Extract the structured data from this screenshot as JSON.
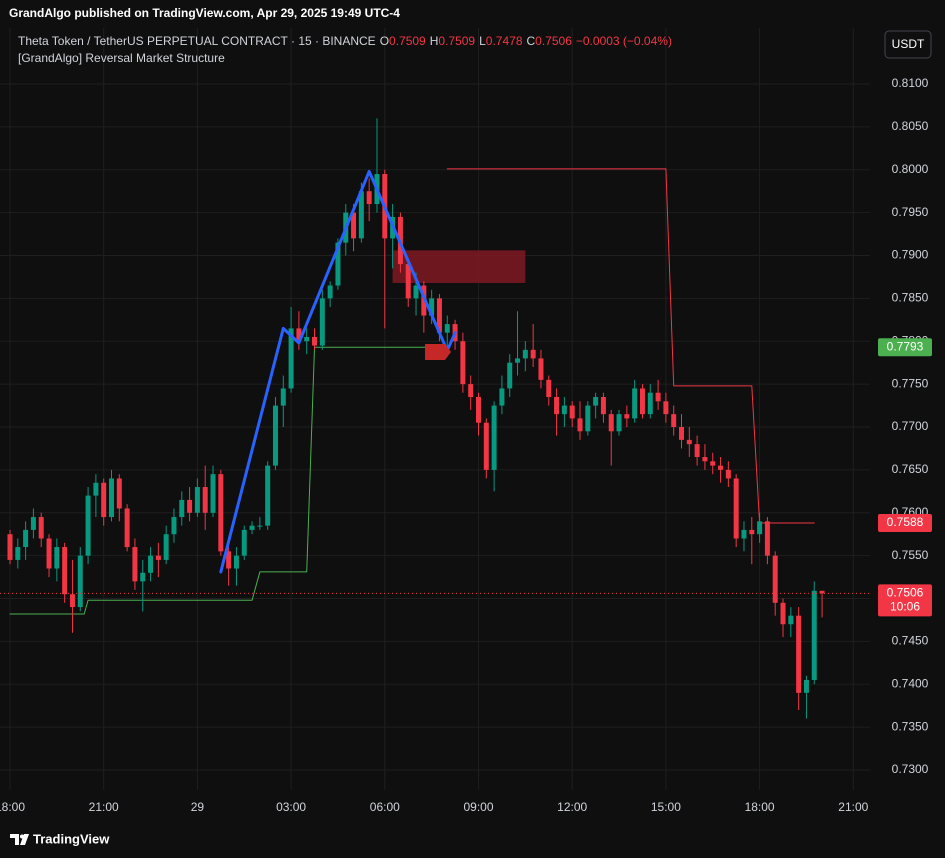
{
  "published": "GrandAlgo published on TradingView.com, Apr 29, 2025 19:49 UTC-4",
  "footer": "TradingView",
  "currency_button": "USDT",
  "chart_data": {
    "type": "candlestick",
    "title": "Theta Token / TetherUS PERPETUAL CONTRACT · 15 · BINANCE",
    "ohlc": [
      {
        "label": "O",
        "value": 0.7509
      },
      {
        "label": "H",
        "value": 0.7509
      },
      {
        "label": "L",
        "value": 0.7478
      },
      {
        "label": "C",
        "value": 0.7506
      }
    ],
    "change": "−0.0003 (−0.04%)",
    "indicator": "[GrandAlgo] Reversal Market Structure",
    "countdown": "10:06",
    "up_color": "#089981",
    "down_color": "#f23645",
    "grid": true,
    "xlim": [
      -1.28,
      110.14
    ],
    "ylim": [
      0.72767,
      0.81653
    ],
    "xticks": [
      {
        "value": 0,
        "label": "18:00"
      },
      {
        "value": 12,
        "label": "21:00"
      },
      {
        "value": 24,
        "label": "29"
      },
      {
        "value": 36,
        "label": "03:00"
      },
      {
        "value": 48,
        "label": "06:00"
      },
      {
        "value": 60,
        "label": "09:00"
      },
      {
        "value": 72,
        "label": "12:00"
      },
      {
        "value": 84,
        "label": "15:00"
      },
      {
        "value": 96,
        "label": "18:00"
      },
      {
        "value": 108,
        "label": "21:00"
      }
    ],
    "yticks": [
      {
        "value": 0.81,
        "label": "0.8100"
      },
      {
        "value": 0.805,
        "label": "0.8050"
      },
      {
        "value": 0.8,
        "label": "0.8000"
      },
      {
        "value": 0.795,
        "label": "0.7950"
      },
      {
        "value": 0.79,
        "label": "0.7900"
      },
      {
        "value": 0.785,
        "label": "0.7850"
      },
      {
        "value": 0.78,
        "label": "0.7800"
      },
      {
        "value": 0.775,
        "label": "0.7750"
      },
      {
        "value": 0.77,
        "label": "0.7700"
      },
      {
        "value": 0.765,
        "label": "0.7650"
      },
      {
        "value": 0.76,
        "label": "0.7600"
      },
      {
        "value": 0.755,
        "label": "0.7550"
      },
      {
        "value": 0.75,
        "label": "0.7500"
      },
      {
        "value": 0.745,
        "label": "0.7450"
      },
      {
        "value": 0.74,
        "label": "0.7400"
      },
      {
        "value": 0.735,
        "label": "0.7350"
      },
      {
        "value": 0.73,
        "label": "0.7300"
      }
    ],
    "candles": {
      "open": [
        0.7575,
        0.7545,
        0.756,
        0.758,
        0.7595,
        0.757,
        0.7535,
        0.756,
        0.7505,
        0.749,
        0.755,
        0.762,
        0.7635,
        0.7595,
        0.764,
        0.7605,
        0.756,
        0.752,
        0.753,
        0.755,
        0.7545,
        0.7575,
        0.7595,
        0.7615,
        0.76,
        0.763,
        0.76,
        0.7645,
        0.7555,
        0.7535,
        0.755,
        0.758,
        0.7585,
        0.7585,
        0.7655,
        0.7725,
        0.7745,
        0.7815,
        0.78,
        0.7805,
        0.7795,
        0.785,
        0.7865,
        0.7915,
        0.795,
        0.792,
        0.7975,
        0.796,
        0.7995,
        0.792,
        0.7945,
        0.789,
        0.785,
        0.7865,
        0.783,
        0.785,
        0.781,
        0.782,
        0.78,
        0.775,
        0.7735,
        0.7705,
        0.765,
        0.7725,
        0.7745,
        0.7775,
        0.778,
        0.779,
        0.778,
        0.7755,
        0.7735,
        0.7715,
        0.7725,
        0.771,
        0.7695,
        0.7725,
        0.7735,
        0.7715,
        0.7695,
        0.7715,
        0.771,
        0.7745,
        0.7715,
        0.774,
        0.773,
        0.7715,
        0.77,
        0.7685,
        0.768,
        0.7665,
        0.766,
        0.7655,
        0.765,
        0.764,
        0.757,
        0.758,
        0.7575,
        0.759,
        0.755,
        0.7495,
        0.747,
        0.748,
        0.739,
        0.7405,
        0.7509
      ],
      "high": [
        0.758,
        0.757,
        0.759,
        0.7605,
        0.76,
        0.7575,
        0.757,
        0.7565,
        0.7545,
        0.756,
        0.763,
        0.7645,
        0.764,
        0.765,
        0.7645,
        0.761,
        0.757,
        0.7545,
        0.756,
        0.7565,
        0.7585,
        0.7605,
        0.7625,
        0.763,
        0.764,
        0.7655,
        0.7655,
        0.765,
        0.756,
        0.756,
        0.7585,
        0.759,
        0.7595,
        0.766,
        0.7735,
        0.776,
        0.784,
        0.7835,
        0.7815,
        0.7815,
        0.786,
        0.787,
        0.792,
        0.796,
        0.796,
        0.7985,
        0.799,
        0.806,
        0.8,
        0.796,
        0.795,
        0.7895,
        0.788,
        0.787,
        0.786,
        0.7855,
        0.783,
        0.7825,
        0.781,
        0.776,
        0.774,
        0.771,
        0.773,
        0.776,
        0.7785,
        0.7835,
        0.78,
        0.782,
        0.779,
        0.776,
        0.7745,
        0.7735,
        0.773,
        0.773,
        0.773,
        0.774,
        0.774,
        0.772,
        0.772,
        0.7725,
        0.7755,
        0.775,
        0.775,
        0.7755,
        0.774,
        0.7725,
        0.7715,
        0.77,
        0.769,
        0.768,
        0.767,
        0.7665,
        0.766,
        0.7645,
        0.759,
        0.7595,
        0.76,
        0.7595,
        0.7555,
        0.75,
        0.749,
        0.749,
        0.741,
        0.752,
        0.7509
      ],
      "low": [
        0.754,
        0.7535,
        0.7545,
        0.757,
        0.756,
        0.7525,
        0.752,
        0.7495,
        0.746,
        0.7485,
        0.754,
        0.7595,
        0.7585,
        0.759,
        0.759,
        0.7555,
        0.751,
        0.7485,
        0.752,
        0.7525,
        0.754,
        0.7565,
        0.7585,
        0.759,
        0.7595,
        0.758,
        0.7595,
        0.755,
        0.7515,
        0.7515,
        0.7545,
        0.7575,
        0.758,
        0.758,
        0.765,
        0.77,
        0.774,
        0.779,
        0.7785,
        0.779,
        0.779,
        0.784,
        0.786,
        0.79,
        0.7905,
        0.7915,
        0.794,
        0.795,
        0.7815,
        0.7885,
        0.788,
        0.784,
        0.783,
        0.781,
        0.782,
        0.78,
        0.779,
        0.779,
        0.774,
        0.772,
        0.769,
        0.764,
        0.7625,
        0.7715,
        0.7735,
        0.776,
        0.7765,
        0.777,
        0.7745,
        0.7725,
        0.769,
        0.77,
        0.77,
        0.7685,
        0.769,
        0.771,
        0.7705,
        0.7655,
        0.769,
        0.77,
        0.7705,
        0.771,
        0.771,
        0.772,
        0.7705,
        0.769,
        0.7675,
        0.7665,
        0.7655,
        0.765,
        0.7645,
        0.7635,
        0.763,
        0.756,
        0.7555,
        0.754,
        0.7565,
        0.754,
        0.748,
        0.7455,
        0.7455,
        0.737,
        0.736,
        0.74,
        0.7478
      ],
      "close": [
        0.7545,
        0.756,
        0.758,
        0.7595,
        0.757,
        0.7535,
        0.756,
        0.7505,
        0.749,
        0.755,
        0.762,
        0.7635,
        0.7595,
        0.764,
        0.7605,
        0.756,
        0.752,
        0.753,
        0.755,
        0.7545,
        0.7575,
        0.7595,
        0.7615,
        0.76,
        0.763,
        0.76,
        0.7645,
        0.7555,
        0.7535,
        0.755,
        0.758,
        0.7585,
        0.7585,
        0.7655,
        0.7725,
        0.7745,
        0.7815,
        0.78,
        0.7805,
        0.7795,
        0.785,
        0.7865,
        0.7915,
        0.795,
        0.792,
        0.7975,
        0.796,
        0.7995,
        0.792,
        0.7945,
        0.789,
        0.785,
        0.7865,
        0.783,
        0.785,
        0.781,
        0.782,
        0.78,
        0.775,
        0.7735,
        0.7705,
        0.765,
        0.7725,
        0.7745,
        0.7775,
        0.778,
        0.779,
        0.778,
        0.7755,
        0.7735,
        0.7715,
        0.7725,
        0.771,
        0.7695,
        0.7725,
        0.7735,
        0.7715,
        0.7695,
        0.7715,
        0.771,
        0.7745,
        0.7715,
        0.774,
        0.773,
        0.7715,
        0.77,
        0.7685,
        0.768,
        0.7665,
        0.766,
        0.7655,
        0.765,
        0.764,
        0.757,
        0.758,
        0.7575,
        0.759,
        0.755,
        0.7495,
        0.747,
        0.748,
        0.739,
        0.7405,
        0.7509,
        0.7506
      ]
    },
    "structure": {
      "color": "#2962ff",
      "x": [
        27,
        35,
        37,
        46,
        56,
        57
      ],
      "values": [
        0.7531,
        0.7815,
        0.7798,
        0.7998,
        0.7789,
        0.781
      ]
    },
    "support": {
      "color": "#4caf50",
      "x": [
        0,
        9.5,
        10,
        31,
        32,
        38,
        39,
        56
      ],
      "values": [
        0.7482,
        0.7482,
        0.7498,
        0.7498,
        0.7531,
        0.7531,
        0.7793,
        0.7793
      ]
    },
    "resistance": {
      "color": "#f23645",
      "x": [
        56,
        84,
        85,
        95,
        96,
        103
      ],
      "values": [
        0.8001,
        0.8001,
        0.7748,
        0.7748,
        0.7588,
        0.7588
      ]
    },
    "zone": {
      "color": "#801922",
      "x": [
        49,
        66
      ],
      "values": [
        0.7868,
        0.7906
      ]
    }
  }
}
